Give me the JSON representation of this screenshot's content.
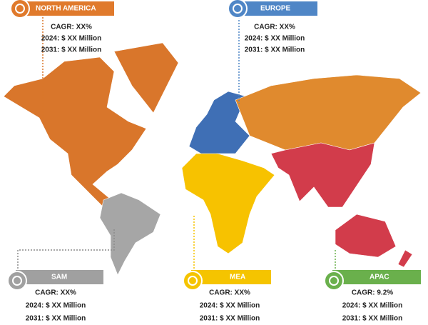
{
  "regions": [
    {
      "name": "NORTH AMERICA",
      "cagr": "CAGR: XX%",
      "y2024": "2024: $ XX Million",
      "y2031": "2031: $ XX Million"
    },
    {
      "name": "EUROPE",
      "cagr": "CAGR: XX%",
      "y2024": "2024: $ XX Million",
      "y2031": "2031: $ XX Million"
    },
    {
      "name": "SAM",
      "cagr": "CAGR: XX%",
      "y2024": "2024: $ XX Million",
      "y2031": "2031: $ XX Million"
    },
    {
      "name": "MEA",
      "cagr": "CAGR: XX%",
      "y2024": "2024: $ XX Million",
      "y2031": "2031: $ XX Million"
    },
    {
      "name": "APAC",
      "cagr": "CAGR: 9.2%",
      "y2024": "2024: $ XX Million",
      "y2031": "2031: $ XX Million"
    }
  ]
}
